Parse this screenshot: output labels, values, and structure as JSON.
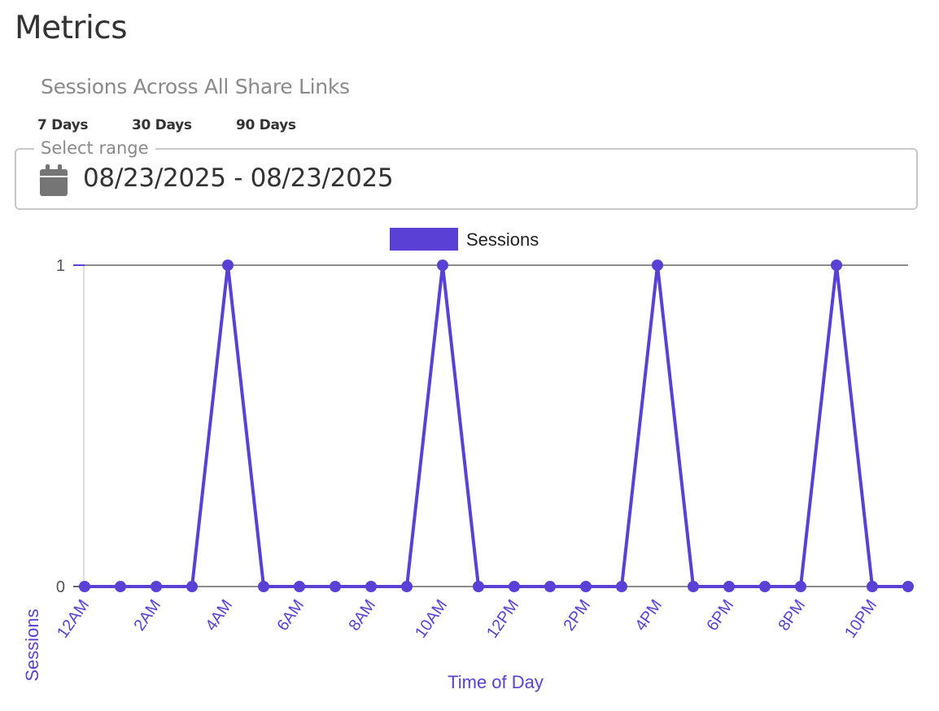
{
  "page": {
    "title": "Metrics"
  },
  "section": {
    "title": "Sessions Across All Share Links"
  },
  "range_tabs": [
    {
      "label": "7 Days"
    },
    {
      "label": "30 Days"
    },
    {
      "label": "90 Days"
    }
  ],
  "date_range": {
    "legend": "Select range",
    "value": "08/23/2025 - 08/23/2025",
    "icon": "calendar-icon"
  },
  "colors": {
    "series": "#5b40d6",
    "axis_title": "#5b40d6",
    "grid": "#666666"
  },
  "chart_data": {
    "type": "line",
    "xlabel": "Time of Day",
    "ylabel": "Sessions",
    "legend": {
      "position": "top-center"
    },
    "ylim": [
      0,
      1
    ],
    "y_ticks": [
      0,
      1
    ],
    "x": [
      "12AM",
      "1AM",
      "2AM",
      "3AM",
      "4AM",
      "5AM",
      "6AM",
      "7AM",
      "8AM",
      "9AM",
      "10AM",
      "11AM",
      "12PM",
      "1PM",
      "2PM",
      "3PM",
      "4PM",
      "5PM",
      "6PM",
      "7PM",
      "8PM",
      "9PM",
      "10PM",
      "11PM"
    ],
    "x_tick_labels": [
      "12AM",
      "2AM",
      "4AM",
      "6AM",
      "8AM",
      "10AM",
      "12PM",
      "2PM",
      "4PM",
      "6PM",
      "8PM",
      "10PM"
    ],
    "series": [
      {
        "name": "Sessions",
        "values": [
          0,
          0,
          0,
          0,
          1,
          0,
          0,
          0,
          0,
          0,
          1,
          0,
          0,
          0,
          0,
          0,
          1,
          0,
          0,
          0,
          0,
          1,
          0,
          0
        ]
      }
    ]
  }
}
